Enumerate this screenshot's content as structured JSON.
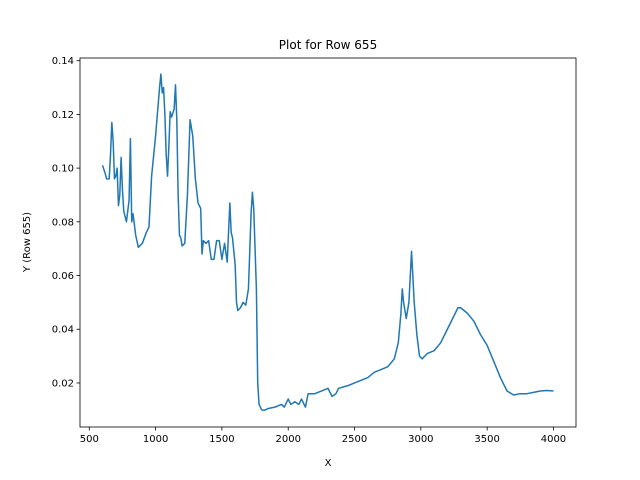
{
  "chart_data": {
    "type": "line",
    "title": "Plot for Row 655",
    "x_label": "X",
    "y_label": "Y (Row 655)",
    "color": "#1f77b4",
    "x": [
      600,
      620,
      630,
      650,
      660,
      670,
      680,
      690,
      700,
      710,
      720,
      730,
      740,
      750,
      760,
      780,
      800,
      810,
      820,
      830,
      850,
      870,
      900,
      930,
      950,
      970,
      1000,
      1030,
      1040,
      1050,
      1060,
      1070,
      1080,
      1090,
      1100,
      1110,
      1120,
      1140,
      1150,
      1160,
      1170,
      1180,
      1190,
      1200,
      1220,
      1240,
      1260,
      1280,
      1300,
      1320,
      1340,
      1350,
      1360,
      1380,
      1400,
      1420,
      1440,
      1460,
      1480,
      1500,
      1520,
      1540,
      1560,
      1570,
      1580,
      1600,
      1610,
      1620,
      1640,
      1660,
      1680,
      1700,
      1720,
      1730,
      1740,
      1760,
      1770,
      1780,
      1800,
      1820,
      1850,
      1900,
      1950,
      1970,
      2000,
      2020,
      2050,
      2080,
      2100,
      2130,
      2150,
      2200,
      2250,
      2300,
      2330,
      2360,
      2380,
      2450,
      2500,
      2550,
      2600,
      2650,
      2700,
      2750,
      2800,
      2830,
      2850,
      2860,
      2870,
      2890,
      2910,
      2930,
      2950,
      2970,
      2990,
      3010,
      3050,
      3100,
      3150,
      3200,
      3250,
      3280,
      3300,
      3350,
      3400,
      3450,
      3500,
      3550,
      3600,
      3650,
      3700,
      3750,
      3800,
      3850,
      3900,
      3950,
      4000
    ],
    "values": [
      0.101,
      0.098,
      0.096,
      0.096,
      0.105,
      0.117,
      0.11,
      0.096,
      0.097,
      0.1,
      0.086,
      0.09,
      0.104,
      0.092,
      0.084,
      0.08,
      0.088,
      0.111,
      0.08,
      0.083,
      0.075,
      0.0705,
      0.072,
      0.076,
      0.078,
      0.097,
      0.112,
      0.13,
      0.135,
      0.128,
      0.13,
      0.12,
      0.105,
      0.097,
      0.108,
      0.121,
      0.119,
      0.122,
      0.131,
      0.118,
      0.09,
      0.075,
      0.074,
      0.071,
      0.072,
      0.09,
      0.118,
      0.112,
      0.096,
      0.087,
      0.085,
      0.068,
      0.073,
      0.072,
      0.073,
      0.066,
      0.066,
      0.073,
      0.073,
      0.066,
      0.072,
      0.065,
      0.087,
      0.076,
      0.074,
      0.064,
      0.05,
      0.047,
      0.048,
      0.05,
      0.049,
      0.055,
      0.083,
      0.091,
      0.085,
      0.055,
      0.02,
      0.012,
      0.01,
      0.0098,
      0.0105,
      0.011,
      0.012,
      0.011,
      0.014,
      0.012,
      0.013,
      0.012,
      0.014,
      0.011,
      0.016,
      0.016,
      0.017,
      0.018,
      0.015,
      0.016,
      0.018,
      0.019,
      0.02,
      0.021,
      0.022,
      0.024,
      0.025,
      0.026,
      0.029,
      0.035,
      0.046,
      0.055,
      0.05,
      0.044,
      0.05,
      0.069,
      0.05,
      0.038,
      0.03,
      0.029,
      0.031,
      0.032,
      0.035,
      0.04,
      0.045,
      0.048,
      0.048,
      0.046,
      0.043,
      0.038,
      0.034,
      0.028,
      0.022,
      0.017,
      0.0155,
      0.016,
      0.016,
      0.0165,
      0.017,
      0.0172,
      0.017
    ],
    "xlim": [
      430,
      4170
    ],
    "ylim": [
      0.0036,
      0.141
    ],
    "xticks": [
      500,
      1000,
      1500,
      2000,
      2500,
      3000,
      3500,
      4000
    ],
    "yticks": [
      0.02,
      0.04,
      0.06,
      0.08,
      {
        "value": 0.1,
        "label": "0.10"
      },
      0.12,
      0.14
    ]
  }
}
